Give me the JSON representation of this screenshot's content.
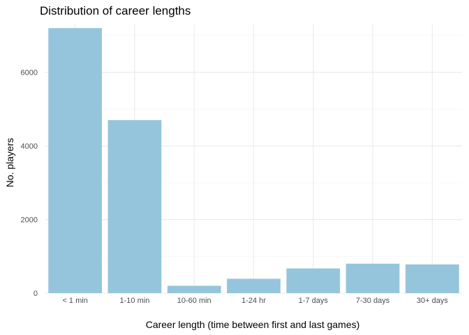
{
  "chart_data": {
    "type": "bar",
    "title": "Distribution of career lengths",
    "xlabel": "Career length (time between first and last games)",
    "ylabel": "No. players",
    "categories": [
      "< 1 min",
      "1-10 min",
      "10-60 min",
      "1-24 hr",
      "1-7 days",
      "7-30 days",
      "30+ days"
    ],
    "values": [
      7200,
      4700,
      200,
      390,
      670,
      800,
      780
    ],
    "ylim": [
      0,
      7200
    ],
    "yticks": [
      0,
      2000,
      4000,
      6000
    ],
    "ytick_labels": [
      "0",
      "2000",
      "4000",
      "6000"
    ],
    "grid": true,
    "legend": "none",
    "bar_color": "#95c5dd"
  }
}
